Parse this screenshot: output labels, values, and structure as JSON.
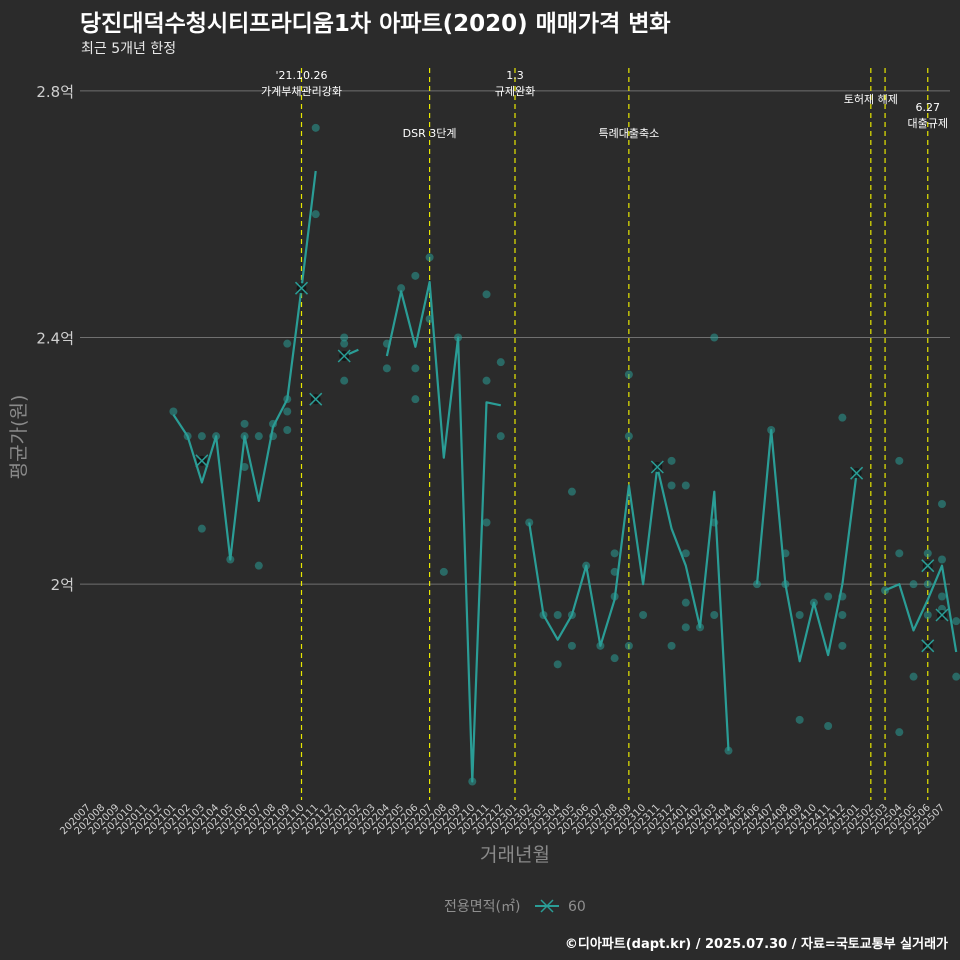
{
  "title": "당진대덕수청시티프라디움1차 아파트(2020) 매매가격 변화",
  "subtitle": "최근 5개년 한정",
  "caption": "©디아파트(dapt.kr) / 2025.07.30 / 자료=국토교통부 실거래가",
  "colors": {
    "background": "#2b2b2b",
    "series": "#2a9d96",
    "marker": "#111111",
    "event_line": "#e8e800",
    "grid": "#707070"
  },
  "chart_data": {
    "type": "line",
    "xlabel": "거래년월",
    "ylabel": "평균가(원)",
    "y_unit": "억",
    "ylim": [
      1.65,
      2.85
    ],
    "y_ticks": [
      {
        "value": 2.0,
        "label": "2억"
      },
      {
        "value": 2.4,
        "label": "2.4억"
      },
      {
        "value": 2.8,
        "label": "2.8억"
      }
    ],
    "grid": true,
    "legend": {
      "title": "전용면적(㎡)",
      "position": "bottom",
      "entries": [
        "60"
      ]
    },
    "x_categories": [
      "202007",
      "202008",
      "202009",
      "202010",
      "202011",
      "202012",
      "202101",
      "202102",
      "202103",
      "202104",
      "202105",
      "202106",
      "202107",
      "202108",
      "202109",
      "202110",
      "202111",
      "202112",
      "202201",
      "202202",
      "202203",
      "202204",
      "202205",
      "202206",
      "202207",
      "202208",
      "202209",
      "202210",
      "202211",
      "202212",
      "202301",
      "202302",
      "202303",
      "202304",
      "202305",
      "202306",
      "202307",
      "202308",
      "202309",
      "202310",
      "202311",
      "202312",
      "202401",
      "202402",
      "202403",
      "202404",
      "202405",
      "202406",
      "202407",
      "202408",
      "202409",
      "202410",
      "202411",
      "202412",
      "202501",
      "202502",
      "202503",
      "202504",
      "202505",
      "202506",
      "202507"
    ],
    "series": [
      {
        "name": "60",
        "line": [
          [
            6,
            2.275
          ],
          [
            7,
            2.24
          ],
          [
            8,
            2.165
          ],
          [
            9,
            2.24
          ],
          [
            10,
            2.04
          ],
          [
            11,
            2.24
          ],
          [
            12,
            2.135
          ],
          [
            13,
            2.255
          ],
          [
            14,
            2.3
          ],
          [
            15,
            2.48
          ],
          [
            16,
            2.67
          ],
          null,
          [
            18,
            2.37
          ],
          [
            19,
            2.38
          ],
          null,
          [
            21,
            2.37
          ],
          [
            22,
            2.475
          ],
          [
            23,
            2.385
          ],
          [
            24,
            2.49
          ],
          [
            25,
            2.205
          ],
          [
            26,
            2.4
          ],
          [
            27,
            1.68
          ],
          [
            28,
            2.295
          ],
          [
            29,
            2.29
          ],
          null,
          [
            31,
            2.1
          ],
          [
            32,
            1.95
          ],
          [
            33,
            1.91
          ],
          [
            34,
            1.95
          ],
          [
            35,
            2.03
          ],
          [
            36,
            1.9
          ],
          [
            37,
            1.975
          ],
          [
            38,
            2.16
          ],
          [
            39,
            2.0
          ],
          [
            40,
            2.19
          ],
          [
            41,
            2.09
          ],
          [
            42,
            2.03
          ],
          [
            43,
            1.93
          ],
          [
            44,
            2.15
          ],
          [
            45,
            1.73
          ],
          null,
          [
            47,
            2.0
          ],
          [
            48,
            2.25
          ],
          [
            49,
            2.0
          ],
          [
            50,
            1.875
          ],
          [
            51,
            1.97
          ],
          [
            52,
            1.885
          ],
          [
            53,
            2.0
          ],
          [
            54,
            2.18
          ],
          null,
          [
            56,
            1.99
          ],
          [
            57,
            2.0
          ],
          [
            58,
            1.925
          ],
          [
            59,
            1.975
          ],
          [
            60,
            2.03
          ],
          [
            61,
            1.89
          ]
        ],
        "points": [
          [
            6,
            2.28
          ],
          [
            7,
            2.24
          ],
          [
            8,
            2.24
          ],
          [
            8,
            2.09
          ],
          [
            9,
            2.24
          ],
          [
            10,
            2.04
          ],
          [
            11,
            2.26
          ],
          [
            11,
            2.24
          ],
          [
            11,
            2.19
          ],
          [
            12,
            2.24
          ],
          [
            12,
            2.03
          ],
          [
            13,
            2.26
          ],
          [
            13,
            2.24
          ],
          [
            14,
            2.3
          ],
          [
            14,
            2.28
          ],
          [
            14,
            2.25
          ],
          [
            14,
            2.39
          ],
          [
            16,
            2.74
          ],
          [
            16,
            2.6
          ],
          [
            18,
            2.39
          ],
          [
            18,
            2.33
          ],
          [
            18,
            2.4
          ],
          [
            21,
            2.39
          ],
          [
            21,
            2.35
          ],
          [
            22,
            2.48
          ],
          [
            23,
            2.5
          ],
          [
            23,
            2.35
          ],
          [
            23,
            2.3
          ],
          [
            24,
            2.53
          ],
          [
            24,
            2.43
          ],
          [
            25,
            2.02
          ],
          [
            26,
            2.4
          ],
          [
            27,
            1.68
          ],
          [
            28,
            2.47
          ],
          [
            28,
            2.33
          ],
          [
            28,
            2.1
          ],
          [
            29,
            2.36
          ],
          [
            29,
            2.24
          ],
          [
            31,
            2.1
          ],
          [
            32,
            1.95
          ],
          [
            33,
            1.95
          ],
          [
            33,
            1.87
          ],
          [
            34,
            1.95
          ],
          [
            34,
            1.9
          ],
          [
            34,
            2.15
          ],
          [
            35,
            2.03
          ],
          [
            36,
            1.9
          ],
          [
            37,
            1.88
          ],
          [
            37,
            2.05
          ],
          [
            37,
            2.02
          ],
          [
            37,
            1.98
          ],
          [
            38,
            1.9
          ],
          [
            38,
            2.34
          ],
          [
            38,
            2.24
          ],
          [
            39,
            1.95
          ],
          [
            40,
            2.19
          ],
          [
            41,
            1.9
          ],
          [
            41,
            2.2
          ],
          [
            41,
            2.16
          ],
          [
            42,
            2.16
          ],
          [
            42,
            2.05
          ],
          [
            42,
            1.97
          ],
          [
            42,
            1.93
          ],
          [
            43,
            1.93
          ],
          [
            44,
            2.4
          ],
          [
            44,
            2.1
          ],
          [
            44,
            1.95
          ],
          [
            45,
            1.73
          ],
          [
            47,
            2.0
          ],
          [
            48,
            2.25
          ],
          [
            49,
            2.05
          ],
          [
            49,
            2.0
          ],
          [
            50,
            1.95
          ],
          [
            50,
            1.78
          ],
          [
            51,
            1.97
          ],
          [
            52,
            1.98
          ],
          [
            52,
            1.77
          ],
          [
            53,
            2.27
          ],
          [
            53,
            1.98
          ],
          [
            53,
            1.95
          ],
          [
            53,
            1.9
          ],
          [
            54,
            2.18
          ],
          [
            56,
            1.99
          ],
          [
            57,
            2.2
          ],
          [
            57,
            2.05
          ],
          [
            57,
            1.76
          ],
          [
            58,
            2.0
          ],
          [
            58,
            1.85
          ],
          [
            59,
            2.05
          ],
          [
            59,
            2.03
          ],
          [
            59,
            2.0
          ],
          [
            59,
            1.95
          ],
          [
            60,
            2.13
          ],
          [
            60,
            2.04
          ],
          [
            60,
            1.98
          ],
          [
            60,
            1.96
          ],
          [
            61,
            1.94
          ],
          [
            61,
            1.85
          ]
        ],
        "x_markers": [
          [
            8,
            2.2
          ],
          [
            15,
            2.48
          ],
          [
            16,
            2.3
          ],
          [
            18,
            2.37
          ],
          [
            40,
            2.19
          ],
          [
            54,
            2.18
          ],
          [
            59,
            2.03
          ],
          [
            59,
            1.9
          ],
          [
            60,
            1.95
          ]
        ]
      }
    ],
    "events": [
      {
        "x": 15,
        "lines": [
          "'21.10.26",
          "가계부채관리강화"
        ],
        "level": 0
      },
      {
        "x": 24,
        "lines": [
          "DSR 3단계"
        ],
        "level": 2
      },
      {
        "x": 30,
        "lines": [
          "1.3",
          "규제완화"
        ],
        "level": 0
      },
      {
        "x": 38,
        "lines": [
          "특례대출축소"
        ],
        "level": 2
      },
      {
        "x": 55,
        "lines": [
          "토허제 해제"
        ],
        "level": 1
      },
      {
        "x": 56,
        "lines": [],
        "level": 1
      },
      {
        "x": 59,
        "lines": [
          "6.27",
          "대출규제"
        ],
        "level": 3
      }
    ]
  }
}
